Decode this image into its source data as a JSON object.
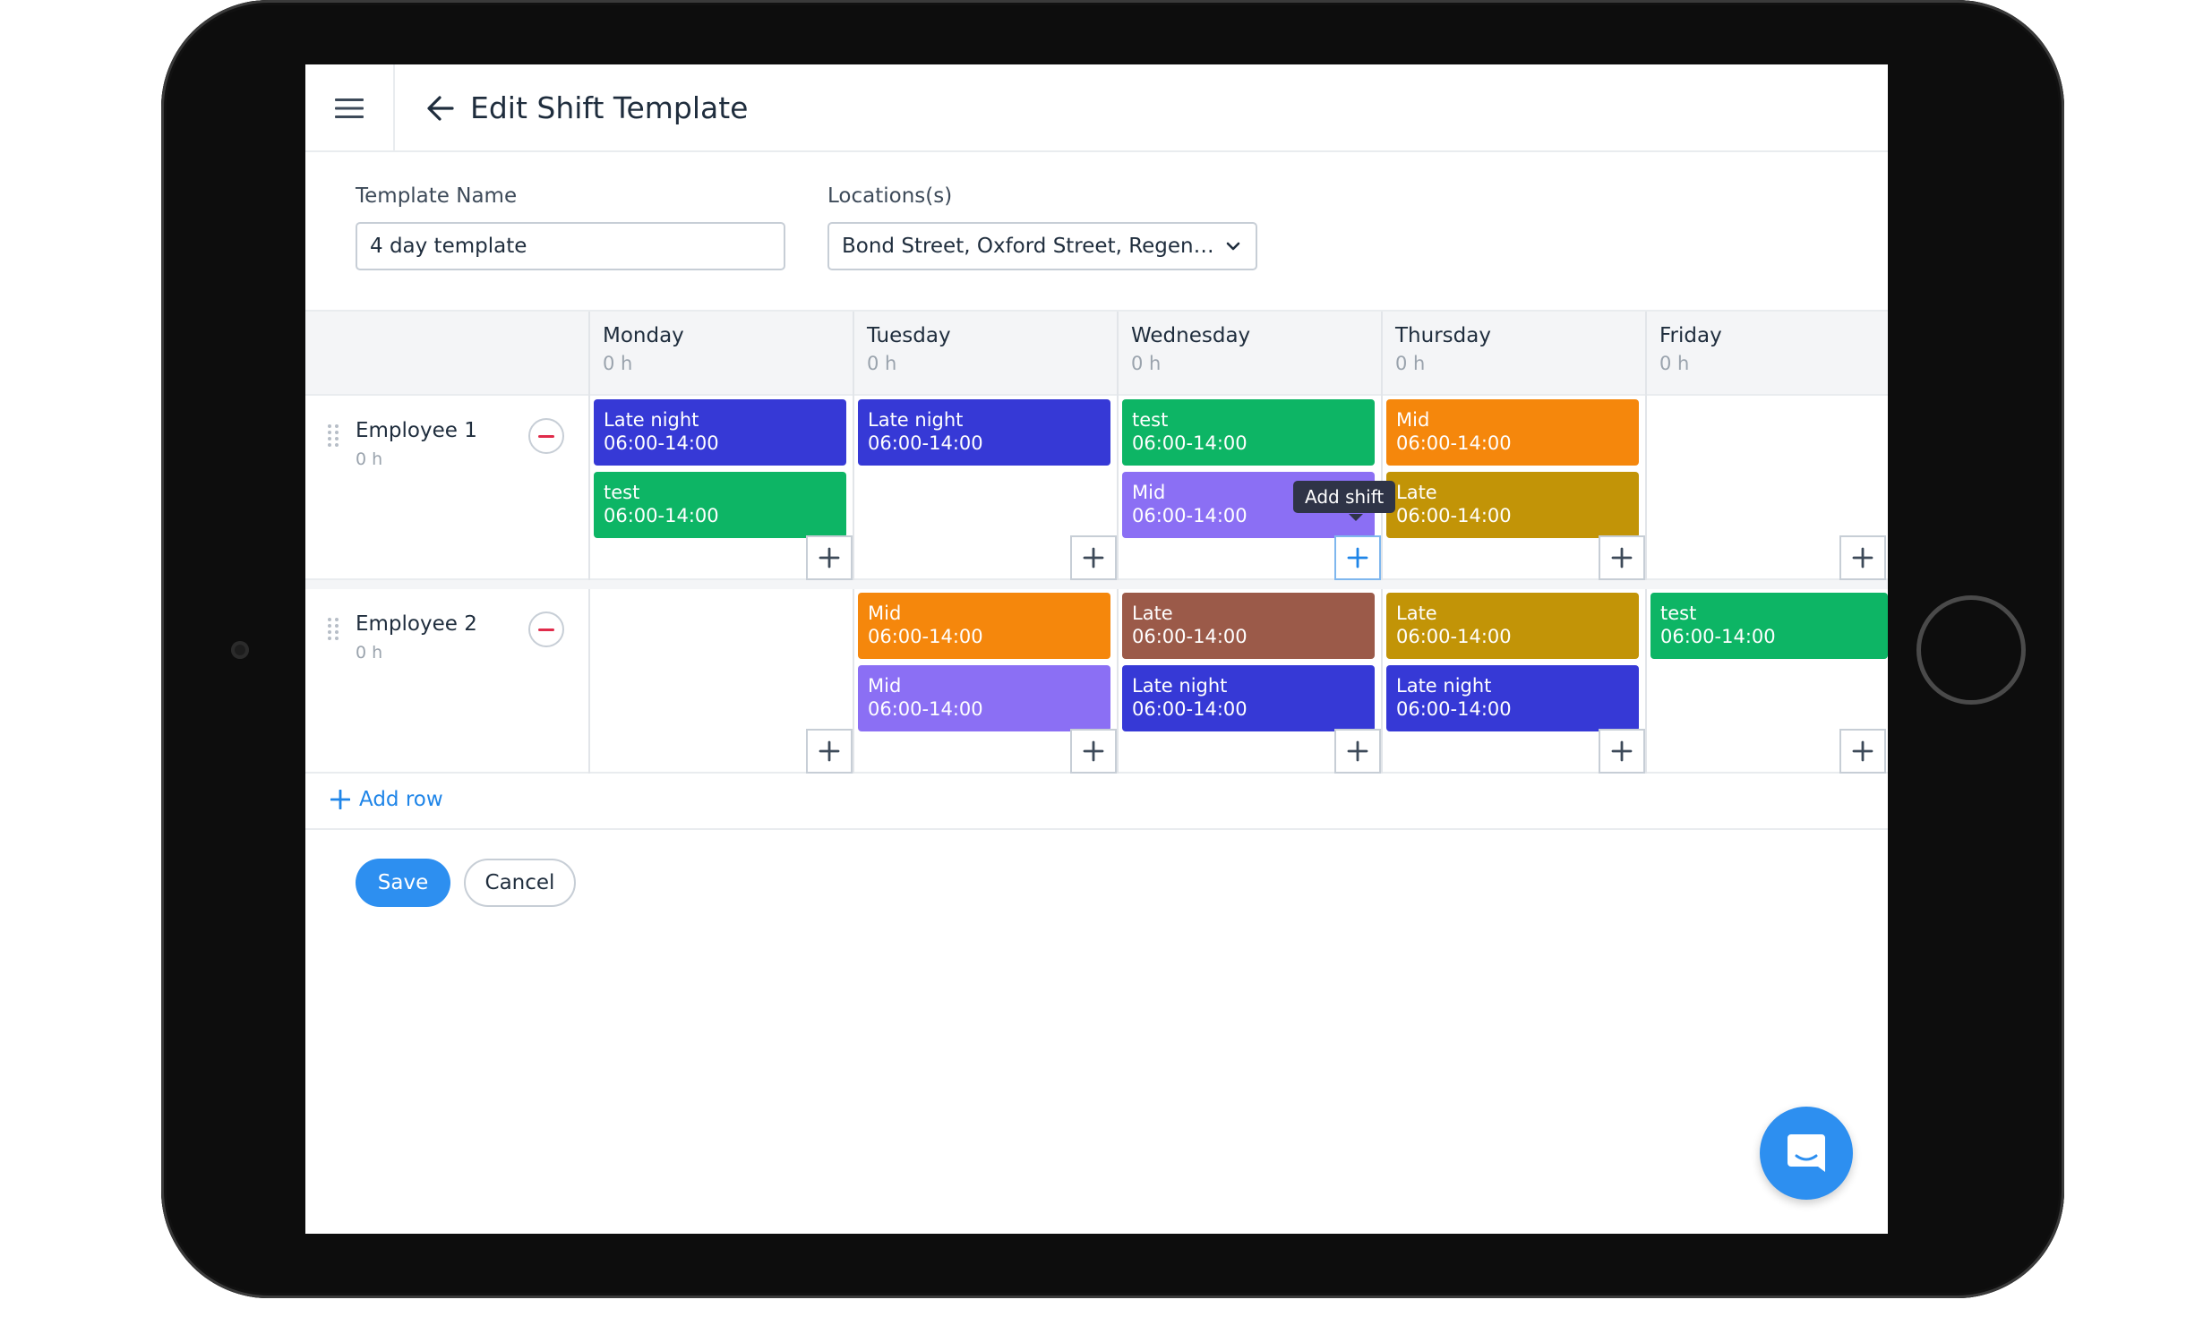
{
  "header": {
    "title": "Edit Shift Template",
    "menu_icon": "hamburger-menu-icon",
    "back_icon": "arrow-left-icon"
  },
  "form": {
    "template_name_label": "Template Name",
    "template_name_value": "4 day template",
    "locations_label": "Locations(s)",
    "locations_value": "Bond Street, Oxford Street, Regent …"
  },
  "days": [
    {
      "name": "Monday",
      "hours": "0 h"
    },
    {
      "name": "Tuesday",
      "hours": "0 h"
    },
    {
      "name": "Wednesday",
      "hours": "0 h"
    },
    {
      "name": "Thursday",
      "hours": "0 h"
    },
    {
      "name": "Friday",
      "hours": "0 h"
    }
  ],
  "employees": [
    {
      "name": "Employee 1",
      "hours": "0 h",
      "shifts": [
        [
          {
            "name": "Late night",
            "time": "06:00-14:00",
            "color": "#3639d6"
          },
          {
            "name": "test",
            "time": "06:00-14:00",
            "color": "#0db565"
          }
        ],
        [
          {
            "name": "Late night",
            "time": "06:00-14:00",
            "color": "#3639d6"
          }
        ],
        [
          {
            "name": "test",
            "time": "06:00-14:00",
            "color": "#0db565"
          },
          {
            "name": "Mid",
            "time": "06:00-14:00",
            "color": "#8b6ff4"
          }
        ],
        [
          {
            "name": "Mid",
            "time": "06:00-14:00",
            "color": "#f5870c"
          },
          {
            "name": "Late",
            "time": "06:00-14:00",
            "color": "#c29407"
          }
        ],
        []
      ]
    },
    {
      "name": "Employee 2",
      "hours": "0 h",
      "shifts": [
        [],
        [
          {
            "name": "Mid",
            "time": "06:00-14:00",
            "color": "#f5870c"
          },
          {
            "name": "Mid",
            "time": "06:00-14:00",
            "color": "#8b6ff4"
          }
        ],
        [
          {
            "name": "Late",
            "time": "06:00-14:00",
            "color": "#9b5a49"
          },
          {
            "name": "Late night",
            "time": "06:00-14:00",
            "color": "#3639d6"
          }
        ],
        [
          {
            "name": "Late",
            "time": "06:00-14:00",
            "color": "#c29407"
          },
          {
            "name": "Late night",
            "time": "06:00-14:00",
            "color": "#3639d6"
          }
        ],
        [
          {
            "name": "test",
            "time": "06:00-14:00",
            "color": "#0db565"
          }
        ]
      ]
    }
  ],
  "tooltip": "Add shift",
  "add_row_label": "Add row",
  "buttons": {
    "save": "Save",
    "cancel": "Cancel"
  },
  "colors": {
    "accent": "#2d8ff0",
    "danger": "#e02b4a"
  }
}
